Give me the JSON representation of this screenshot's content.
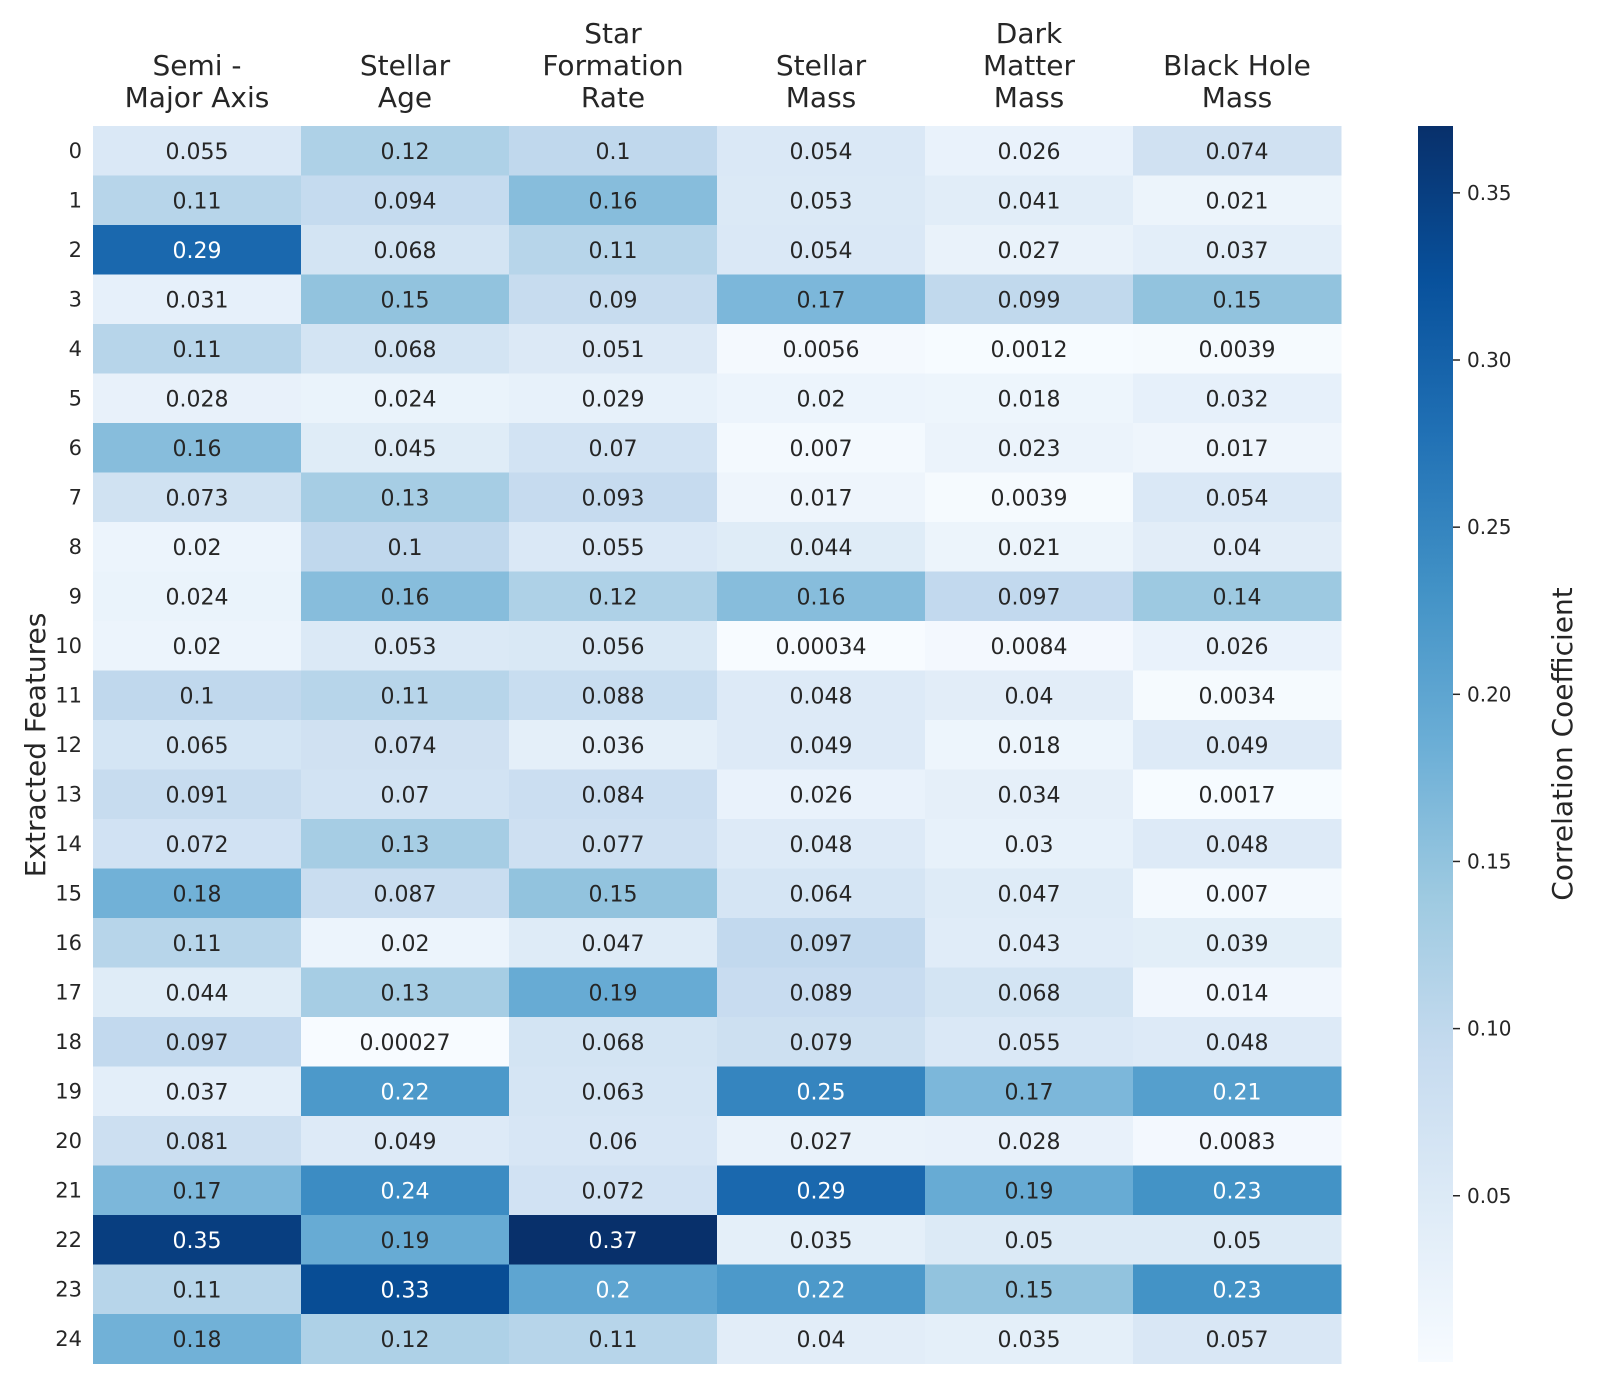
{
  "chart_data": {
    "type": "heatmap",
    "columns": [
      [
        "Semi -",
        "Major Axis"
      ],
      [
        "Stellar",
        "Age"
      ],
      [
        "Star",
        "Formation",
        "Rate"
      ],
      [
        "Stellar",
        "Mass"
      ],
      [
        "Dark",
        "Matter",
        "Mass"
      ],
      [
        "Black Hole",
        "Mass"
      ]
    ],
    "rows": [
      "0",
      "1",
      "2",
      "3",
      "4",
      "5",
      "6",
      "7",
      "8",
      "9",
      "10",
      "11",
      "12",
      "13",
      "14",
      "15",
      "16",
      "17",
      "18",
      "19",
      "20",
      "21",
      "22",
      "23",
      "24"
    ],
    "values": [
      [
        "0.055",
        "0.12",
        "0.1",
        "0.054",
        "0.026",
        "0.074"
      ],
      [
        "0.11",
        "0.094",
        "0.16",
        "0.053",
        "0.041",
        "0.021"
      ],
      [
        "0.29",
        "0.068",
        "0.11",
        "0.054",
        "0.027",
        "0.037"
      ],
      [
        "0.031",
        "0.15",
        "0.09",
        "0.17",
        "0.099",
        "0.15"
      ],
      [
        "0.11",
        "0.068",
        "0.051",
        "0.0056",
        "0.0012",
        "0.0039"
      ],
      [
        "0.028",
        "0.024",
        "0.029",
        "0.02",
        "0.018",
        "0.032"
      ],
      [
        "0.16",
        "0.045",
        "0.07",
        "0.007",
        "0.023",
        "0.017"
      ],
      [
        "0.073",
        "0.13",
        "0.093",
        "0.017",
        "0.0039",
        "0.054"
      ],
      [
        "0.02",
        "0.1",
        "0.055",
        "0.044",
        "0.021",
        "0.04"
      ],
      [
        "0.024",
        "0.16",
        "0.12",
        "0.16",
        "0.097",
        "0.14"
      ],
      [
        "0.02",
        "0.053",
        "0.056",
        "0.00034",
        "0.0084",
        "0.026"
      ],
      [
        "0.1",
        "0.11",
        "0.088",
        "0.048",
        "0.04",
        "0.0034"
      ],
      [
        "0.065",
        "0.074",
        "0.036",
        "0.049",
        "0.018",
        "0.049"
      ],
      [
        "0.091",
        "0.07",
        "0.084",
        "0.026",
        "0.034",
        "0.0017"
      ],
      [
        "0.072",
        "0.13",
        "0.077",
        "0.048",
        "0.03",
        "0.048"
      ],
      [
        "0.18",
        "0.087",
        "0.15",
        "0.064",
        "0.047",
        "0.007"
      ],
      [
        "0.11",
        "0.02",
        "0.047",
        "0.097",
        "0.043",
        "0.039"
      ],
      [
        "0.044",
        "0.13",
        "0.19",
        "0.089",
        "0.068",
        "0.014"
      ],
      [
        "0.097",
        "0.00027",
        "0.068",
        "0.079",
        "0.055",
        "0.048"
      ],
      [
        "0.037",
        "0.22",
        "0.063",
        "0.25",
        "0.17",
        "0.21"
      ],
      [
        "0.081",
        "0.049",
        "0.06",
        "0.027",
        "0.028",
        "0.0083"
      ],
      [
        "0.17",
        "0.24",
        "0.072",
        "0.29",
        "0.19",
        "0.23"
      ],
      [
        "0.35",
        "0.19",
        "0.37",
        "0.035",
        "0.05",
        "0.05"
      ],
      [
        "0.11",
        "0.33",
        "0.2",
        "0.22",
        "0.15",
        "0.23"
      ],
      [
        "0.18",
        "0.12",
        "0.11",
        "0.04",
        "0.035",
        "0.057"
      ]
    ],
    "ylabel": "Extracted Features",
    "colorbar_label": "Correlation Coefficient",
    "colorbar_ticks": [
      "0.05",
      "0.10",
      "0.15",
      "0.20",
      "0.25",
      "0.30",
      "0.35"
    ],
    "value_range": [
      0.00027,
      0.37
    ],
    "colormap": "Blues",
    "colormap_stops": [
      "#f7fbff",
      "#deebf7",
      "#c6dbef",
      "#9ecae1",
      "#6baed6",
      "#4292c6",
      "#2171b5",
      "#08519c",
      "#08306b"
    ]
  }
}
